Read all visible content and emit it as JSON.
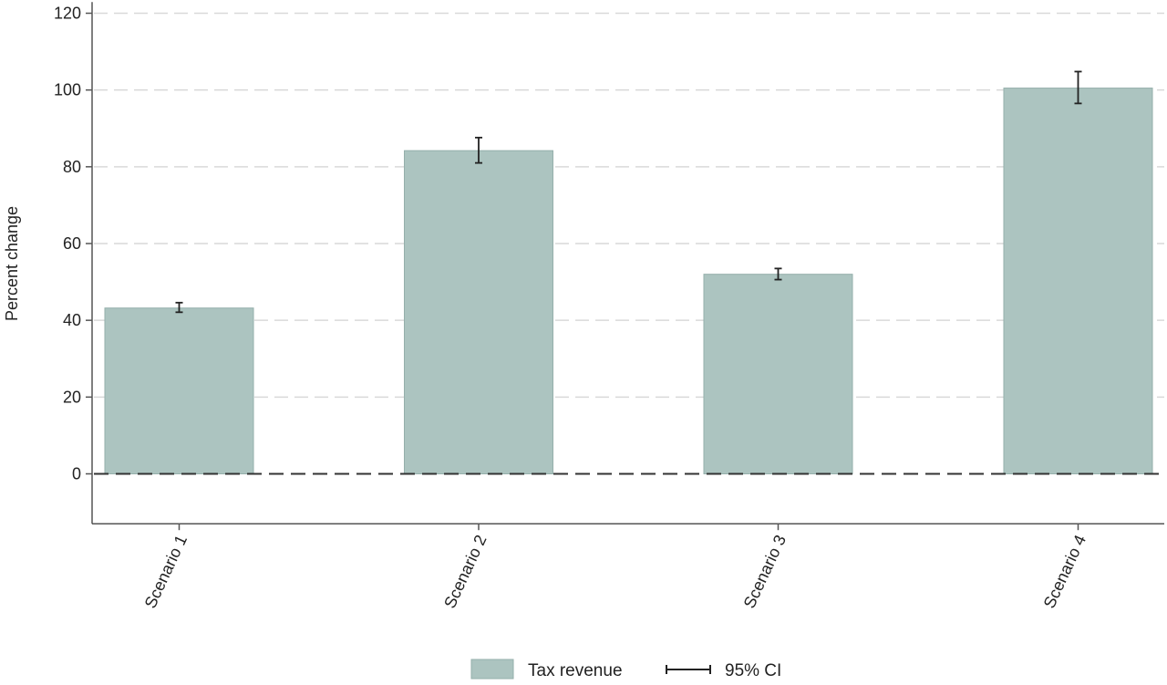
{
  "chart_data": {
    "type": "bar",
    "title": "",
    "xlabel": "",
    "ylabel": "Percent change",
    "ylim": [
      -13,
      121
    ],
    "yticks": [
      0,
      20,
      40,
      60,
      80,
      100,
      120
    ],
    "grid": "horizontal dashed",
    "reference_line": 0,
    "categories": [
      "Scenario 1",
      "Scenario 2",
      "Scenario 3",
      "Scenario 4"
    ],
    "series": [
      {
        "name": "Tax revenue",
        "values": [
          43.2,
          84.2,
          52.0,
          100.5
        ],
        "ci_lower": [
          42.1,
          81.0,
          50.6,
          96.5
        ],
        "ci_upper": [
          44.6,
          87.6,
          53.5,
          104.8
        ]
      }
    ],
    "legend": {
      "position": "bottom",
      "entries": [
        "Tax revenue",
        "95% CI"
      ]
    },
    "colors": {
      "bar_fill": "#acc4c0",
      "bar_stroke": "#95afab",
      "grid": "#d9d9d9",
      "axis": "#555555",
      "errorbar": "#222222"
    }
  }
}
